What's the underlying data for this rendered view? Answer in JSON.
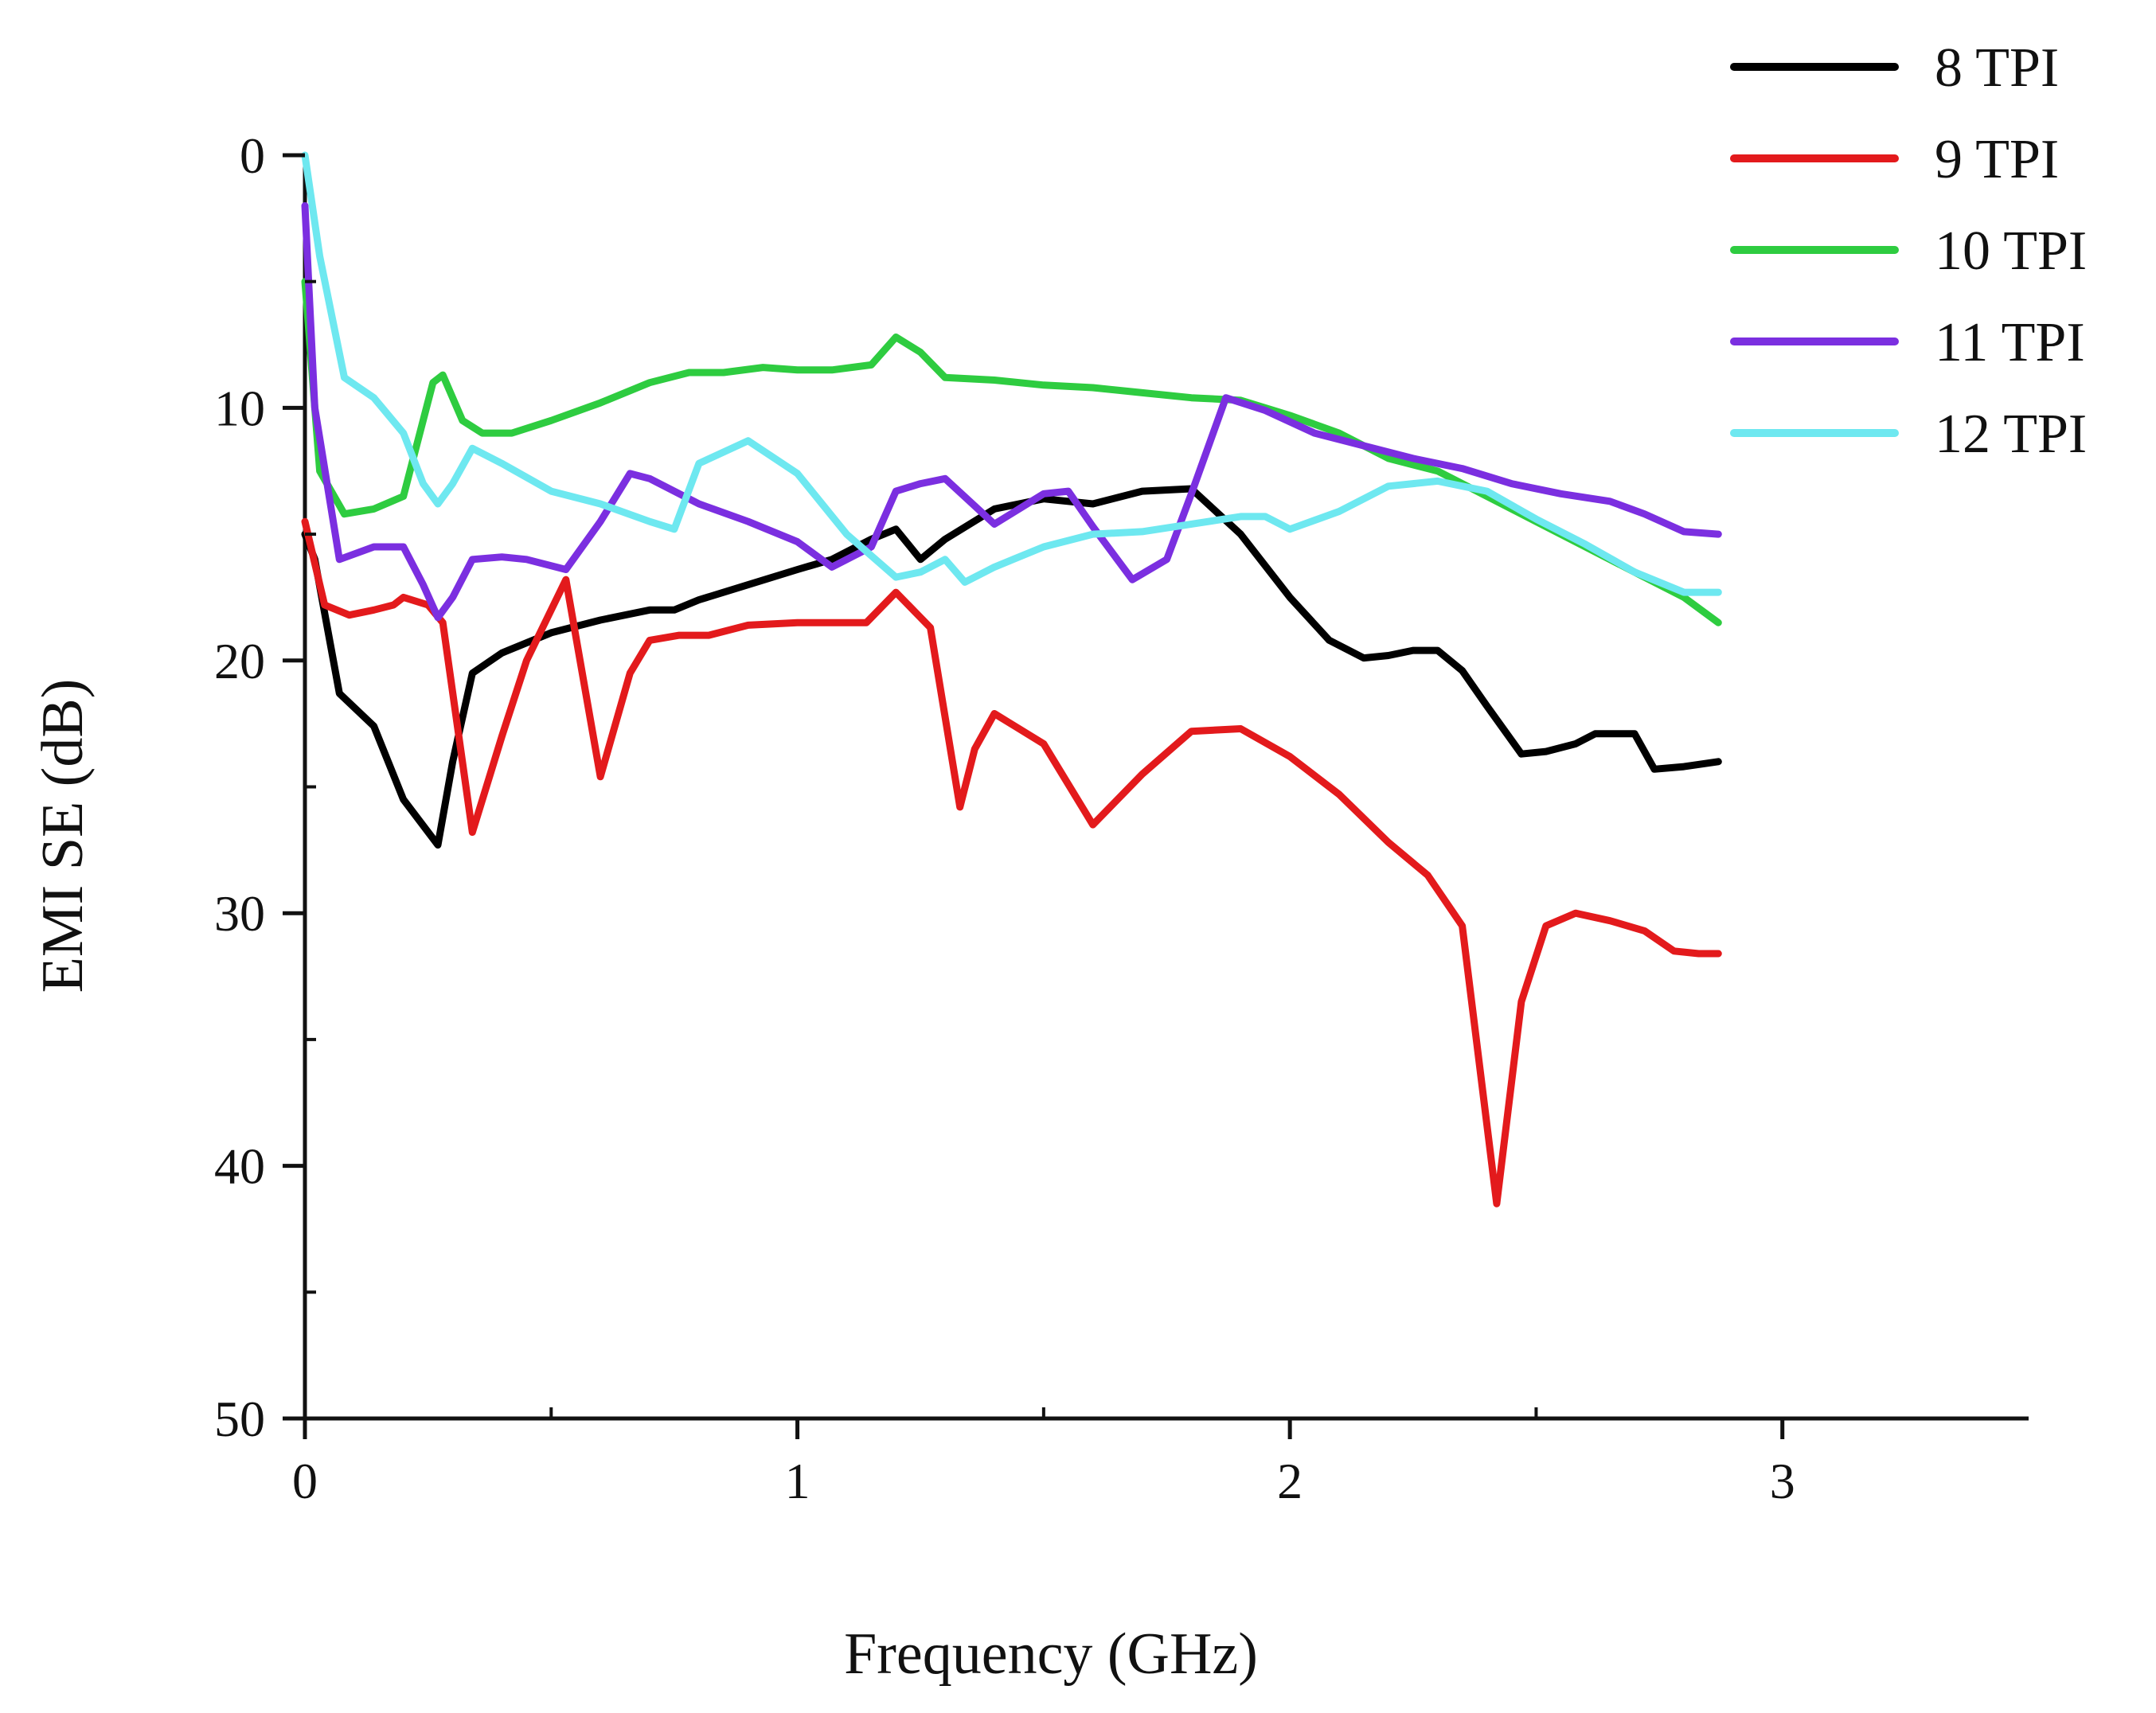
{
  "chart_data": {
    "type": "line",
    "title": "",
    "xlabel": "Frequency (GHz)",
    "ylabel": "EMI SE (dB)",
    "xlim": [
      0,
      3.5
    ],
    "ylim": [
      0,
      50
    ],
    "y_inverted": true,
    "x_ticks": [
      0,
      1,
      2,
      3
    ],
    "x_tick_labels": [
      "0",
      "1",
      "2",
      "3"
    ],
    "y_ticks": [
      0,
      10,
      20,
      30,
      40,
      50
    ],
    "y_tick_labels": [
      "0",
      "10",
      "20",
      "30",
      "40",
      "50"
    ],
    "grid": false,
    "legend_position": "top-right",
    "series": [
      {
        "name": "8 TPI",
        "color": "#000000",
        "x": [
          0,
          0.02,
          0.07,
          0.14,
          0.2,
          0.27,
          0.3,
          0.34,
          0.4,
          0.5,
          0.6,
          0.7,
          0.75,
          0.8,
          0.9,
          1.0,
          1.07,
          1.15,
          1.2,
          1.25,
          1.3,
          1.4,
          1.5,
          1.6,
          1.7,
          1.8,
          1.9,
          2.0,
          2.08,
          2.15,
          2.2,
          2.25,
          2.3,
          2.35,
          2.4,
          2.47,
          2.52,
          2.58,
          2.62,
          2.7,
          2.74,
          2.8,
          2.87
        ],
        "values": [
          15,
          16,
          21.3,
          22.6,
          25.5,
          27.3,
          24,
          20.5,
          19.7,
          18.9,
          18.4,
          18.0,
          18.0,
          17.6,
          17.0,
          16.4,
          16.0,
          15.2,
          14.8,
          16.0,
          15.2,
          14.0,
          13.6,
          13.8,
          13.3,
          13.2,
          15.0,
          17.5,
          19.2,
          19.9,
          19.8,
          19.6,
          19.6,
          20.4,
          21.8,
          23.7,
          23.6,
          23.3,
          22.9,
          22.9,
          24.3,
          24.2,
          24.0
        ]
      },
      {
        "name": "9 TPI",
        "color": "#e31a1c",
        "x": [
          0,
          0.04,
          0.09,
          0.14,
          0.18,
          0.2,
          0.25,
          0.28,
          0.34,
          0.4,
          0.45,
          0.53,
          0.6,
          0.66,
          0.7,
          0.76,
          0.82,
          0.9,
          1.0,
          1.1,
          1.14,
          1.2,
          1.27,
          1.33,
          1.36,
          1.4,
          1.5,
          1.6,
          1.7,
          1.8,
          1.9,
          2.0,
          2.1,
          2.2,
          2.28,
          2.35,
          2.42,
          2.47,
          2.52,
          2.58,
          2.65,
          2.72,
          2.78,
          2.83,
          2.87
        ],
        "values": [
          14.5,
          17.8,
          18.2,
          18.0,
          17.8,
          17.5,
          17.8,
          18.5,
          26.8,
          23.0,
          20.0,
          16.8,
          24.6,
          20.5,
          19.2,
          19.0,
          19.0,
          18.6,
          18.5,
          18.5,
          18.5,
          17.3,
          18.7,
          25.8,
          23.5,
          22.1,
          23.3,
          26.5,
          24.5,
          22.8,
          22.7,
          23.8,
          25.3,
          27.2,
          28.5,
          30.5,
          41.5,
          33.5,
          30.5,
          30.0,
          30.3,
          30.7,
          31.5,
          31.6,
          31.6
        ]
      },
      {
        "name": "10 TPI",
        "color": "#2ecc40",
        "x": [
          0,
          0.03,
          0.08,
          0.14,
          0.2,
          0.26,
          0.28,
          0.32,
          0.36,
          0.42,
          0.5,
          0.6,
          0.7,
          0.78,
          0.85,
          0.93,
          1.0,
          1.07,
          1.15,
          1.2,
          1.25,
          1.3,
          1.4,
          1.5,
          1.6,
          1.7,
          1.8,
          1.9,
          2.0,
          2.1,
          2.2,
          2.3,
          2.4,
          2.5,
          2.6,
          2.7,
          2.8,
          2.87
        ],
        "values": [
          5.0,
          12.5,
          14.2,
          14.0,
          13.5,
          9.0,
          8.7,
          10.5,
          11.0,
          11.0,
          10.5,
          9.8,
          9.0,
          8.6,
          8.6,
          8.4,
          8.5,
          8.5,
          8.3,
          7.2,
          7.8,
          8.8,
          8.9,
          9.1,
          9.2,
          9.4,
          9.6,
          9.7,
          10.3,
          11.0,
          12.0,
          12.5,
          13.5,
          14.5,
          15.5,
          16.5,
          17.5,
          18.5
        ]
      },
      {
        "name": "11 TPI",
        "color": "#7b2fe0",
        "x": [
          0,
          0.02,
          0.07,
          0.14,
          0.2,
          0.24,
          0.27,
          0.3,
          0.34,
          0.4,
          0.45,
          0.53,
          0.6,
          0.66,
          0.7,
          0.8,
          0.9,
          1.0,
          1.07,
          1.15,
          1.2,
          1.25,
          1.3,
          1.4,
          1.5,
          1.55,
          1.6,
          1.68,
          1.75,
          1.8,
          1.87,
          1.95,
          2.05,
          2.15,
          2.25,
          2.35,
          2.45,
          2.55,
          2.65,
          2.72,
          2.8,
          2.87
        ],
        "values": [
          2.0,
          10.0,
          16.0,
          15.5,
          15.5,
          17.0,
          18.3,
          17.5,
          16.0,
          15.9,
          16.0,
          16.4,
          14.5,
          12.6,
          12.8,
          13.8,
          14.5,
          15.3,
          16.3,
          15.5,
          13.3,
          13.0,
          12.8,
          14.6,
          13.4,
          13.3,
          14.7,
          16.8,
          16.0,
          13.4,
          9.6,
          10.1,
          11.0,
          11.5,
          12.0,
          12.4,
          13.0,
          13.4,
          13.7,
          14.2,
          14.9,
          15.0
        ]
      },
      {
        "name": "12 TPI",
        "color": "#6ee8f0",
        "x": [
          0,
          0.03,
          0.08,
          0.14,
          0.2,
          0.24,
          0.27,
          0.3,
          0.34,
          0.4,
          0.5,
          0.6,
          0.7,
          0.75,
          0.8,
          0.9,
          1.0,
          1.1,
          1.2,
          1.25,
          1.3,
          1.34,
          1.4,
          1.5,
          1.6,
          1.7,
          1.8,
          1.9,
          1.95,
          2.0,
          2.1,
          2.2,
          2.3,
          2.4,
          2.5,
          2.6,
          2.7,
          2.8,
          2.87
        ],
        "values": [
          0,
          4.0,
          8.8,
          9.6,
          11.0,
          13.0,
          13.8,
          13.0,
          11.6,
          12.2,
          13.3,
          13.8,
          14.5,
          14.8,
          12.2,
          11.3,
          12.6,
          15.0,
          16.7,
          16.5,
          16.0,
          16.9,
          16.3,
          15.5,
          15.0,
          14.9,
          14.6,
          14.3,
          14.3,
          14.8,
          14.1,
          13.1,
          12.9,
          13.3,
          14.4,
          15.4,
          16.5,
          17.3,
          17.3
        ]
      }
    ]
  }
}
